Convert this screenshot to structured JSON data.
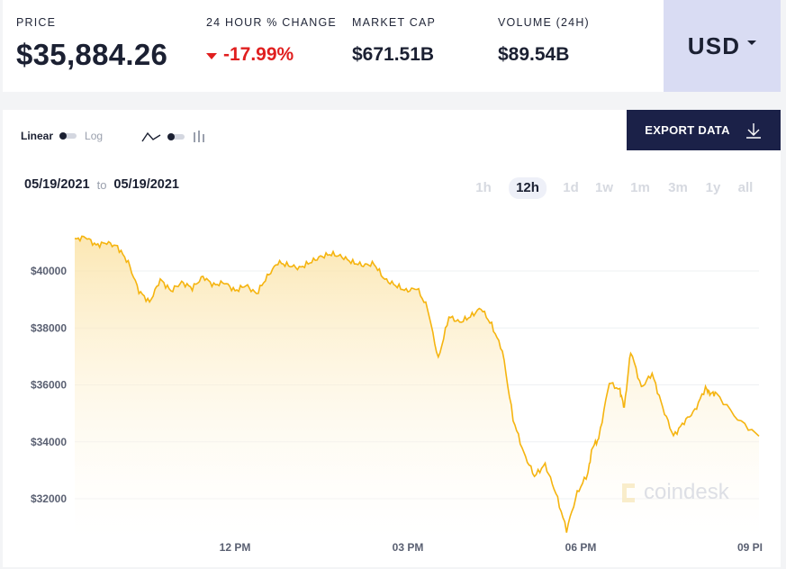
{
  "stats": {
    "price_label": "PRICE",
    "price_value": "$35,884.26",
    "change_label": "24 HOUR % CHANGE",
    "change_value": "-17.99%",
    "market_cap_label": "MARKET CAP",
    "market_cap_value": "$671.51B",
    "volume_label": "VOLUME (24H)",
    "volume_value": "$89.54B"
  },
  "currency": "USD",
  "toolbar": {
    "linear_label": "Linear",
    "log_label": "Log",
    "export_label": "EXPORT DATA"
  },
  "dates": {
    "from": "05/19/2021",
    "to_label": "to",
    "to": "05/19/2021"
  },
  "ranges": [
    "1h",
    "12h",
    "1d",
    "1w",
    "1m",
    "3m",
    "1y",
    "all"
  ],
  "active_range": "12h",
  "watermark": "coindesk",
  "colors": {
    "accent_line": "#f5b40f",
    "negative": "#e01f1f",
    "dark": "#1b2148",
    "currency_bg": "#d9dcf3"
  },
  "chart_data": {
    "type": "area",
    "yticks": [
      "$40000",
      "$38000",
      "$36000",
      "$34000",
      "$32000"
    ],
    "xticks": [
      "12 PM",
      "03 PM",
      "06 PM",
      "09 PI"
    ],
    "ylim": [
      30600,
      42000
    ],
    "grid": true,
    "series": [
      {
        "x": [
          0,
          0.25,
          0.5,
          0.75,
          1,
          1.25,
          1.5,
          1.75,
          2,
          2.25,
          2.5,
          2.75,
          3,
          3.25,
          3.5,
          3.75,
          4,
          4.25,
          4.5,
          4.75,
          5,
          5.25,
          5.5,
          5.75,
          6,
          6.25,
          6.5,
          6.75,
          7,
          7.25,
          7.5,
          7.75,
          8,
          8.25,
          8.5,
          8.75,
          9,
          9.25,
          9.5,
          9.75,
          10,
          10.25,
          10.5,
          10.75,
          11,
          11.25,
          11.5,
          11.75,
          12,
          12.1,
          12.25,
          12.5,
          12.75,
          12.85,
          13,
          13.25,
          13.5,
          13.75,
          14,
          14.25,
          14.5,
          14.75,
          14.85,
          15,
          15.5,
          16
        ],
        "values": [
          41100,
          41200,
          40900,
          41000,
          40850,
          40300,
          39300,
          38900,
          39700,
          39300,
          39600,
          39400,
          39800,
          39500,
          39600,
          39300,
          39500,
          39200,
          39800,
          40300,
          40200,
          40100,
          40300,
          40500,
          40600,
          40500,
          40300,
          40200,
          40250,
          39700,
          39500,
          39300,
          39400,
          38700,
          36900,
          38400,
          38200,
          38400,
          38700,
          38100,
          37200,
          34800,
          33600,
          32800,
          33200,
          32200,
          30900,
          32200,
          32900,
          33800,
          34100,
          36100,
          35800,
          35200,
          37200,
          35900,
          36400,
          35200,
          34200,
          34700,
          35100,
          35900,
          35700,
          35700,
          34800,
          34200
        ]
      }
    ]
  }
}
